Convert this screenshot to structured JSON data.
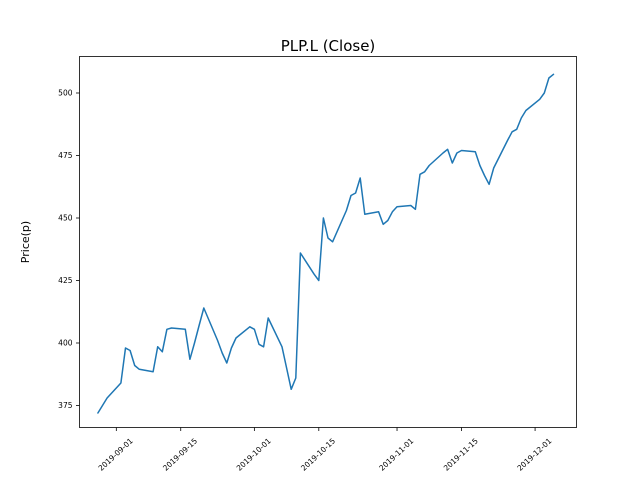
{
  "figure": {
    "background": "#ffffff"
  },
  "chart_data": {
    "type": "line",
    "title": "PLP.L (Close)",
    "xlabel": "",
    "ylabel": "Price(p)",
    "grid": false,
    "legend": "none",
    "line_color": "#1f77b4",
    "axis_color": "#000000",
    "ylim": [
      366.2,
      514.6
    ],
    "xlim": [
      "2019-08-24",
      "2019-12-10"
    ],
    "yticks": [
      375,
      400,
      425,
      450,
      475,
      500
    ],
    "xticks": [
      "2019-09-01",
      "2019-09-15",
      "2019-10-01",
      "2019-10-15",
      "2019-11-01",
      "2019-11-15",
      "2019-12-01"
    ],
    "series": [
      {
        "name": "Close",
        "color": "#1f77b4",
        "x": [
          "2019-08-28",
          "2019-08-29",
          "2019-08-30",
          "2019-09-02",
          "2019-09-03",
          "2019-09-04",
          "2019-09-05",
          "2019-09-06",
          "2019-09-09",
          "2019-09-10",
          "2019-09-11",
          "2019-09-12",
          "2019-09-13",
          "2019-09-16",
          "2019-09-17",
          "2019-09-18",
          "2019-09-19",
          "2019-09-20",
          "2019-09-23",
          "2019-09-24",
          "2019-09-25",
          "2019-09-26",
          "2019-09-27",
          "2019-09-30",
          "2019-10-01",
          "2019-10-02",
          "2019-10-03",
          "2019-10-04",
          "2019-10-07",
          "2019-10-08",
          "2019-10-09",
          "2019-10-10",
          "2019-10-11",
          "2019-10-14",
          "2019-10-15",
          "2019-10-16",
          "2019-10-17",
          "2019-10-18",
          "2019-10-21",
          "2019-10-22",
          "2019-10-23",
          "2019-10-24",
          "2019-10-25",
          "2019-10-28",
          "2019-10-29",
          "2019-10-30",
          "2019-10-31",
          "2019-11-01",
          "2019-11-04",
          "2019-11-05",
          "2019-11-06",
          "2019-11-07",
          "2019-11-08",
          "2019-11-11",
          "2019-11-12",
          "2019-11-13",
          "2019-11-14",
          "2019-11-15",
          "2019-11-18",
          "2019-11-19",
          "2019-11-20",
          "2019-11-21",
          "2019-11-22",
          "2019-11-25",
          "2019-11-26",
          "2019-11-27",
          "2019-11-28",
          "2019-11-29",
          "2019-12-02",
          "2019-12-03",
          "2019-12-04",
          "2019-12-05"
        ],
        "y": [
          372,
          375,
          378,
          384,
          398,
          397,
          391,
          389.5,
          388.5,
          398.5,
          396.5,
          405.5,
          406,
          405.5,
          393.5,
          400,
          407,
          414,
          401,
          396,
          392,
          398,
          402,
          406.5,
          405.5,
          399.5,
          398.5,
          410,
          398.5,
          390,
          381.5,
          386,
          436,
          427.5,
          425,
          450,
          442,
          440.5,
          453,
          459,
          460,
          466,
          451.5,
          452.5,
          447.5,
          449,
          452.5,
          454.5,
          455,
          453.5,
          467.5,
          468.5,
          471,
          476,
          477.5,
          472,
          476,
          477,
          476.5,
          471,
          467,
          463.5,
          470,
          481,
          484.5,
          485.5,
          490,
          493,
          497.5,
          500,
          506,
          507.5
        ]
      }
    ]
  }
}
